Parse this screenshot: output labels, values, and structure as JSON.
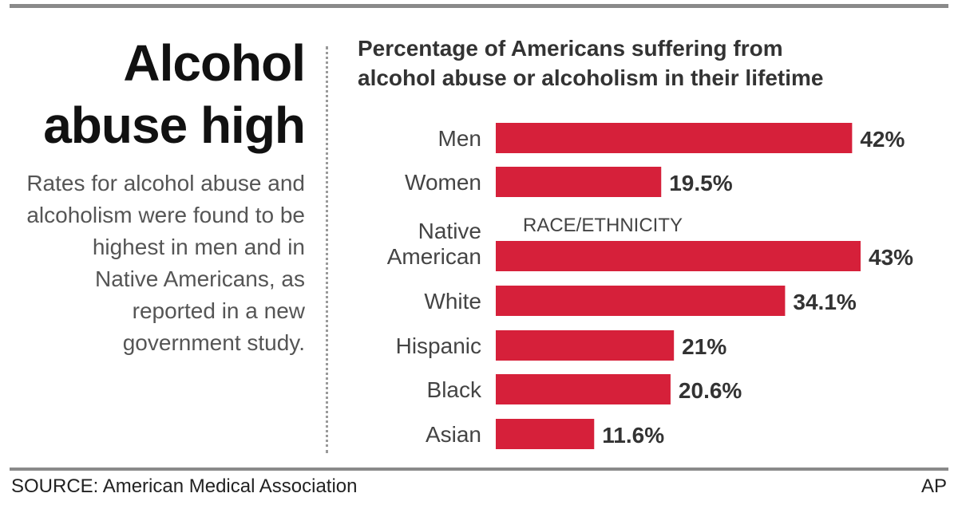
{
  "headline": {
    "line1": "Alcohol",
    "line2": "abuse high"
  },
  "dek": "Rates for alcohol abuse and alcoholism were found to be highest in men and in Native Americans, as reported in a new government study.",
  "chart_data": {
    "type": "bar",
    "orientation": "horizontal",
    "title_line1": "Percentage of Americans suffering from",
    "title_line2": "alcohol abuse or alcoholism in their lifetime",
    "section_label": "RACE/ETHNICITY",
    "categories": [
      [
        "Men"
      ],
      [
        "Women"
      ],
      [
        "Native",
        "American"
      ],
      [
        "White"
      ],
      [
        "Hispanic"
      ],
      [
        "Black"
      ],
      [
        "Asian"
      ]
    ],
    "values": [
      42,
      19.5,
      43,
      34.1,
      21,
      20.6,
      11.6
    ],
    "value_labels": [
      "42%",
      "19.5%",
      "43%",
      "34.1%",
      "21%",
      "20.6%",
      "11.6%"
    ],
    "bar_color": "#d6203a",
    "xlim": [
      0,
      43
    ],
    "grid": false,
    "legend": "none"
  },
  "footer": {
    "source": "SOURCE: American Medical Association",
    "credit": "AP"
  }
}
